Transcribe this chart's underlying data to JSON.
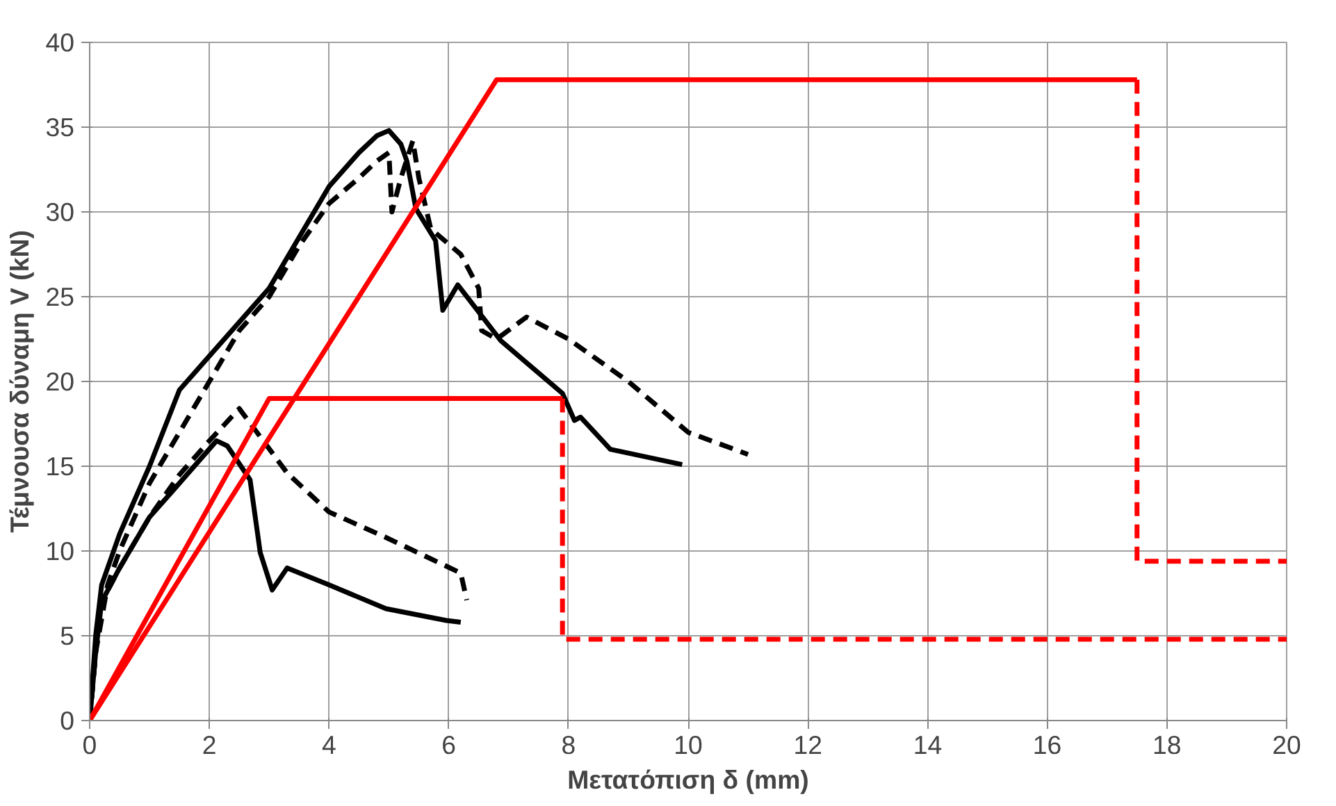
{
  "chart_data": {
    "type": "line",
    "xlabel": "Μετατόπιση δ (mm)",
    "ylabel": "Τέμνουσα δύναμη V (kN)",
    "xlim": [
      0,
      20
    ],
    "ylim": [
      0,
      40
    ],
    "xticks": [
      0,
      2,
      4,
      6,
      8,
      10,
      12,
      14,
      16,
      18,
      20
    ],
    "yticks": [
      0,
      5,
      10,
      15,
      20,
      25,
      30,
      35,
      40
    ],
    "grid": true,
    "marker": "none",
    "series": [
      {
        "color": "#000000",
        "line_style": "solid",
        "x": [
          0,
          0.1,
          0.2,
          0.5,
          1,
          1.5,
          2,
          2.5,
          3,
          3.5,
          4,
          4.5,
          4.8,
          5,
          5.2,
          5.3,
          5.45,
          5.78,
          5.9,
          6.15,
          6.87,
          7.9,
          8.1,
          8.2,
          8.7,
          9.9
        ],
        "values": [
          0,
          5,
          8,
          11,
          15,
          19.5,
          21.5,
          23.5,
          25.5,
          28.5,
          31.5,
          33.5,
          34.5,
          34.8,
          34,
          33,
          30.2,
          28.3,
          24.2,
          25.7,
          22.4,
          19.3,
          17.7,
          17.9,
          16,
          15.1
        ]
      },
      {
        "color": "#000000",
        "line_style": "dashed",
        "x": [
          0,
          0.1,
          0.3,
          0.5,
          1,
          1.5,
          2,
          2.5,
          3,
          3.5,
          4,
          4.5,
          4.8,
          5,
          5.05,
          5.2,
          5.4,
          5.5,
          5.7,
          6.2,
          6.5,
          6.55,
          6.8,
          7.3,
          8,
          9,
          10,
          11
        ],
        "values": [
          0,
          4,
          8,
          10,
          14,
          17,
          20,
          23,
          25,
          28,
          30.5,
          32,
          33,
          33.5,
          30,
          32,
          34.2,
          32,
          29,
          27.5,
          25.5,
          23,
          22.5,
          23.8,
          22.5,
          20,
          17,
          15.7
        ]
      },
      {
        "color": "#000000",
        "line_style": "solid",
        "x": [
          0,
          0.1,
          0.2,
          0.5,
          1,
          1.5,
          2.12,
          2.3,
          2.68,
          2.85,
          3.05,
          3.3,
          4,
          4.95,
          5.96,
          6.2
        ],
        "values": [
          0,
          4,
          7,
          9,
          12,
          14,
          16.5,
          16.2,
          14.2,
          9.9,
          7.7,
          9.0,
          8,
          6.6,
          5.9,
          5.8
        ]
      },
      {
        "color": "#000000",
        "line_style": "dashed",
        "x": [
          0,
          0.1,
          0.2,
          0.5,
          1,
          1.5,
          2,
          2.5,
          3.3,
          4,
          4.95,
          6.2,
          6.3
        ],
        "values": [
          0,
          4,
          7,
          9,
          12,
          14.5,
          16.5,
          18.4,
          14.6,
          12.3,
          10.8,
          8.7,
          7.1
        ]
      },
      {
        "color": "#ff0000",
        "line_style": "solid",
        "x": [
          0,
          3,
          7.9
        ],
        "values": [
          0,
          19,
          19
        ]
      },
      {
        "color": "#ff0000",
        "line_style": "dashed",
        "x": [
          7.9,
          7.9,
          20
        ],
        "values": [
          19,
          4.8,
          4.8
        ]
      },
      {
        "color": "#ff0000",
        "line_style": "solid",
        "x": [
          0,
          6.8,
          17.5
        ],
        "values": [
          0,
          37.8,
          37.8
        ]
      },
      {
        "color": "#ff0000",
        "line_style": "dashed",
        "x": [
          17.5,
          17.5,
          20
        ],
        "values": [
          37.8,
          9.4,
          9.4
        ]
      }
    ]
  }
}
